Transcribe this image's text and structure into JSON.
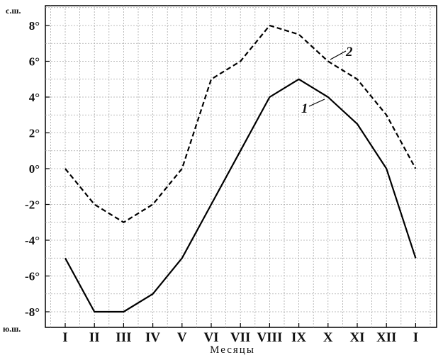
{
  "chart_data": {
    "type": "line",
    "xlabel": "Месяцы",
    "north_label": "с.ш.",
    "south_label": "ю.ш.",
    "categories": [
      "I",
      "II",
      "III",
      "IV",
      "V",
      "VI",
      "VII",
      "VIII",
      "IX",
      "X",
      "XI",
      "XII",
      "I"
    ],
    "y_tick_labels": [
      "8°",
      "6°",
      "4°",
      "2°",
      "0°",
      "-2°",
      "-4°",
      "-6°",
      "-8°"
    ],
    "ylim": [
      -8,
      8
    ],
    "grid": true,
    "series": [
      {
        "name": "1",
        "style": "solid",
        "values": [
          -5,
          -8,
          -8,
          -7,
          -5,
          -2,
          1,
          4,
          5,
          4,
          2.5,
          0,
          -5
        ]
      },
      {
        "name": "2",
        "style": "dashed",
        "values": [
          0,
          -2,
          -3,
          -2,
          0,
          5,
          6,
          8,
          7.5,
          6,
          5,
          3,
          0
        ]
      }
    ]
  }
}
